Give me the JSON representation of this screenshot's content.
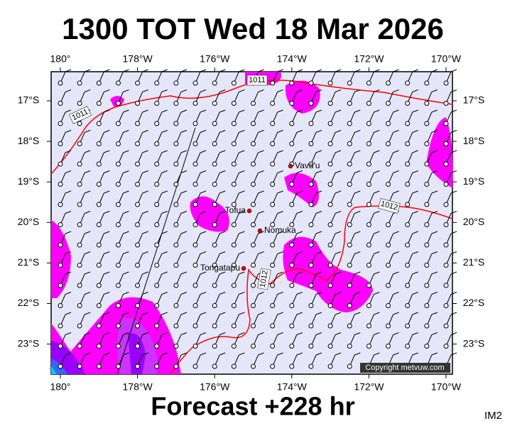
{
  "header": {
    "title": "1300 TOT Wed 18 Mar 2026"
  },
  "map": {
    "lon_labels": [
      "180°",
      "178°W",
      "176°W",
      "174°W",
      "172°W",
      "170°W"
    ],
    "lat_labels": [
      "17°S",
      "18°S",
      "19°S",
      "20°S",
      "21°S",
      "22°S",
      "23°S"
    ],
    "places": [
      "Vava'u",
      "Tofua",
      "Nomuka",
      "Tongatapu"
    ],
    "isobar_labels": [
      "1011",
      "1011",
      "1012",
      "1012"
    ],
    "copyright": "Copyright metvuw.com"
  },
  "footer": {
    "forecast": "Forecast +228 hr",
    "code": "IM2"
  }
}
